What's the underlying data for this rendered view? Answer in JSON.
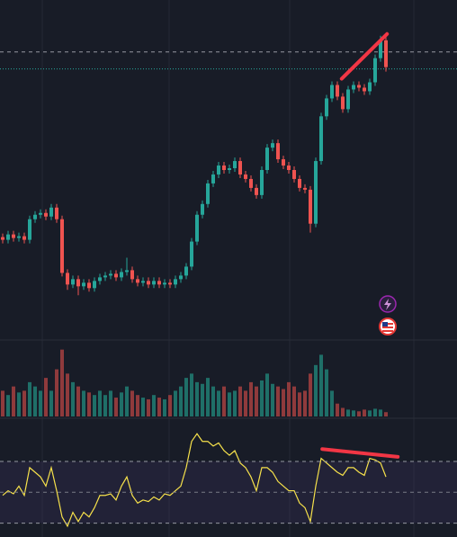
{
  "chart_data": [
    {
      "type": "candlestick",
      "up_color": "#26a69a",
      "down_color": "#ef5350",
      "ylim": [
        0,
        380
      ],
      "open": [
        115,
        112,
        118,
        114,
        116,
        112,
        135,
        140,
        142,
        138,
        148,
        135,
        75,
        62,
        68,
        60,
        64,
        58,
        66,
        70,
        72,
        74,
        70,
        76,
        78,
        68,
        64,
        66,
        62,
        66,
        62,
        64,
        62,
        68,
        72,
        82,
        110,
        140,
        152,
        175,
        185,
        195,
        190,
        192,
        200,
        185,
        180,
        170,
        162,
        190,
        215,
        220,
        202,
        195,
        190,
        180,
        170,
        168,
        130,
        200,
        250,
        270,
        285,
        272,
        258,
        280,
        285,
        282,
        278,
        288,
        315,
        335
      ],
      "high": [
        119,
        122,
        122,
        120,
        120,
        139,
        144,
        146,
        146,
        152,
        152,
        139,
        79,
        72,
        72,
        68,
        68,
        70,
        74,
        76,
        78,
        78,
        80,
        92,
        82,
        72,
        70,
        70,
        70,
        70,
        68,
        68,
        72,
        76,
        86,
        114,
        144,
        156,
        179,
        189,
        199,
        199,
        196,
        204,
        204,
        189,
        184,
        174,
        194,
        219,
        224,
        224,
        206,
        199,
        194,
        184,
        174,
        172,
        204,
        254,
        274,
        289,
        289,
        276,
        284,
        289,
        289,
        286,
        292,
        319,
        340,
        339
      ],
      "low": [
        108,
        108,
        110,
        110,
        108,
        108,
        131,
        136,
        134,
        134,
        131,
        71,
        56,
        58,
        50,
        56,
        54,
        54,
        62,
        66,
        68,
        66,
        66,
        72,
        64,
        60,
        60,
        58,
        58,
        58,
        58,
        58,
        58,
        64,
        68,
        78,
        106,
        136,
        148,
        171,
        181,
        186,
        186,
        188,
        181,
        176,
        166,
        158,
        158,
        186,
        211,
        198,
        191,
        186,
        176,
        166,
        164,
        120,
        126,
        196,
        246,
        266,
        268,
        254,
        254,
        276,
        278,
        274,
        274,
        284,
        311,
        300
      ],
      "close": [
        112,
        118,
        114,
        116,
        112,
        135,
        140,
        142,
        138,
        148,
        135,
        75,
        62,
        68,
        60,
        64,
        58,
        66,
        70,
        72,
        74,
        70,
        76,
        78,
        68,
        64,
        66,
        62,
        66,
        62,
        64,
        62,
        68,
        72,
        82,
        110,
        140,
        152,
        175,
        185,
        195,
        190,
        192,
        200,
        185,
        180,
        170,
        162,
        190,
        215,
        220,
        202,
        195,
        190,
        180,
        170,
        168,
        130,
        200,
        250,
        270,
        285,
        272,
        258,
        280,
        285,
        282,
        278,
        288,
        315,
        335,
        305
      ],
      "hlines": [
        {
          "value": 322,
          "style": "dashed",
          "color": "#9598a1"
        },
        {
          "value": 303,
          "style": "dotted",
          "color": "#26a69a"
        }
      ],
      "trendline": {
        "x": [
          62.8,
          71.2
        ],
        "y": [
          292,
          342
        ],
        "color": "#f23645"
      }
    },
    {
      "type": "bar",
      "ylim": [
        0,
        85
      ],
      "up_color": "#1f6f68",
      "down_color": "#8f3a3c",
      "values": [
        30,
        25,
        35,
        28,
        30,
        40,
        35,
        30,
        45,
        30,
        55,
        78,
        50,
        40,
        35,
        30,
        28,
        25,
        30,
        25,
        30,
        22,
        28,
        35,
        30,
        25,
        22,
        20,
        25,
        22,
        20,
        25,
        30,
        35,
        45,
        50,
        40,
        38,
        45,
        35,
        30,
        35,
        28,
        30,
        35,
        30,
        40,
        35,
        42,
        50,
        38,
        35,
        32,
        40,
        35,
        28,
        30,
        50,
        60,
        72,
        55,
        30,
        15,
        10,
        8,
        7,
        6,
        8,
        7,
        9,
        8,
        5
      ]
    },
    {
      "type": "line",
      "ylim": [
        21,
        98
      ],
      "color": "#f7e24b",
      "band": [
        30,
        70
      ],
      "band_color": "#7e57c2",
      "values": [
        48,
        51,
        49,
        54,
        48,
        66,
        63,
        60,
        54,
        66,
        51,
        34,
        28,
        37,
        31,
        37,
        34,
        40,
        48,
        48,
        49,
        45,
        54,
        60,
        48,
        43,
        45,
        44,
        47,
        45,
        49,
        48,
        51,
        54,
        66,
        83,
        88,
        83,
        83,
        80,
        82,
        77,
        74,
        77,
        69,
        66,
        60,
        51,
        66,
        66,
        63,
        57,
        54,
        51,
        51,
        43,
        40,
        31,
        54,
        72,
        69,
        66,
        63,
        61,
        66,
        66,
        63,
        61,
        72,
        71,
        69,
        60
      ],
      "hlines": [
        {
          "value": 70,
          "style": "dashed",
          "color": "#9598a1"
        },
        {
          "value": 50,
          "style": "dashed",
          "color": "#787b86"
        },
        {
          "value": 30,
          "style": "dashed",
          "color": "#9598a1"
        }
      ],
      "trendline": {
        "x": [
          59.2,
          73.2
        ],
        "y": [
          78,
          73
        ],
        "color": "#f23645"
      }
    }
  ]
}
